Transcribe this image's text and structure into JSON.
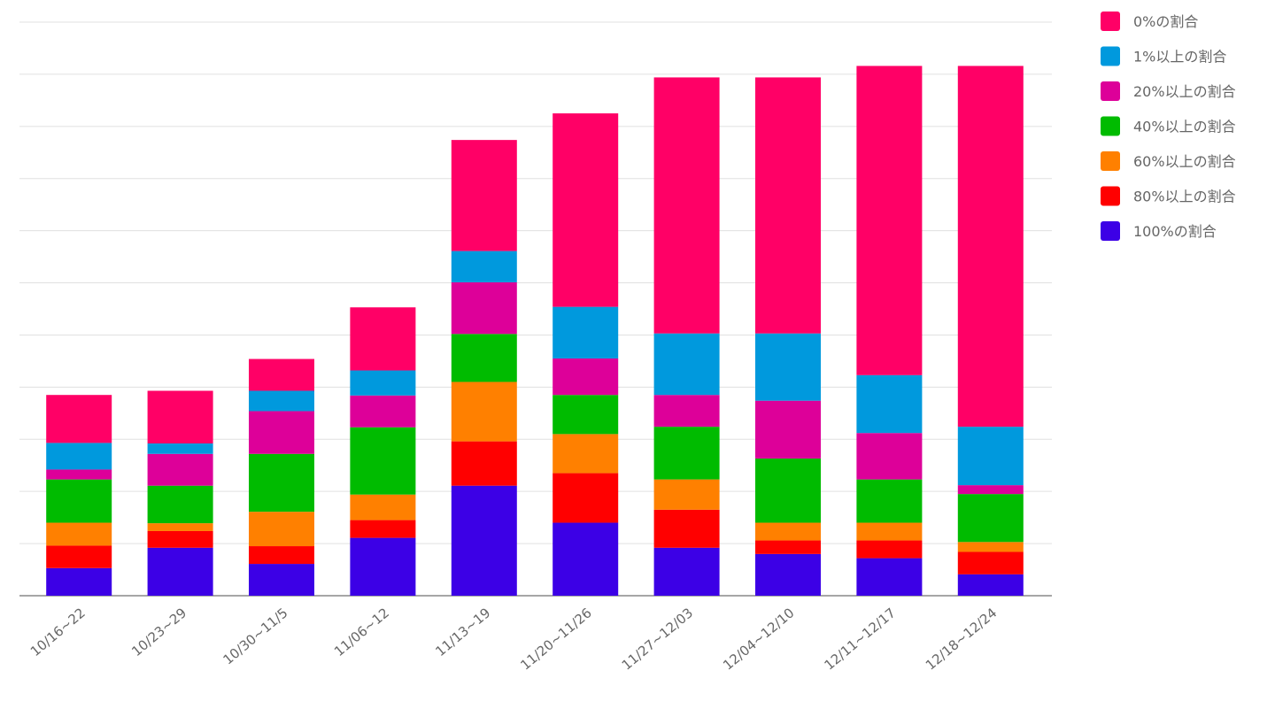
{
  "chart_data": {
    "type": "bar",
    "stacked": true,
    "title": "",
    "xlabel": "",
    "ylabel": "",
    "ylim": [
      0,
      110
    ],
    "grid": true,
    "y_tick_labels_shown": false,
    "legend_position": "right",
    "categories": [
      "10/16~22",
      "10/23~29",
      "10/30~11/5",
      "11/06~12",
      "11/13~19",
      "11/20~11/26",
      "11/27~12/03",
      "12/04~12/10",
      "12/11~12/17",
      "12/18~12/24"
    ],
    "series": [
      {
        "name": "100%の割合",
        "color": "#3c00e6",
        "values": [
          5.3,
          9.2,
          6.1,
          11.1,
          21.1,
          14.0,
          9.2,
          8.0,
          7.2,
          4.1
        ]
      },
      {
        "name": "80%以上の割合",
        "color": "#ff0000",
        "values": [
          4.3,
          3.2,
          3.4,
          3.4,
          8.5,
          9.5,
          7.3,
          2.6,
          3.4,
          4.3
        ]
      },
      {
        "name": "60%以上の割合",
        "color": "#ff8000",
        "values": [
          4.4,
          1.5,
          6.6,
          4.9,
          11.4,
          7.5,
          5.8,
          3.4,
          3.4,
          1.9
        ]
      },
      {
        "name": "40%以上の割合",
        "color": "#00bb00",
        "values": [
          8.3,
          7.2,
          11.1,
          12.9,
          9.2,
          7.5,
          10.1,
          12.3,
          8.3,
          9.2
        ]
      },
      {
        "name": "20%以上の割合",
        "color": "#dd0099",
        "values": [
          1.9,
          6.1,
          8.2,
          6.1,
          9.9,
          7.0,
          6.1,
          11.1,
          8.9,
          1.7
        ]
      },
      {
        "name": "1%以上の割合",
        "color": "#0099dd",
        "values": [
          5.1,
          2.0,
          3.9,
          4.8,
          6.0,
          9.9,
          11.8,
          12.9,
          11.1,
          11.2
        ]
      },
      {
        "name": "0%の割合",
        "color": "#ff0066",
        "values": [
          9.2,
          10.1,
          6.1,
          12.1,
          21.3,
          37.1,
          49.1,
          49.1,
          59.3,
          69.2
        ]
      }
    ],
    "legend_order": [
      "0%の割合",
      "1%以上の割合",
      "20%以上の割合",
      "40%以上の割合",
      "60%以上の割合",
      "80%以上の割合",
      "100%の割合"
    ]
  }
}
